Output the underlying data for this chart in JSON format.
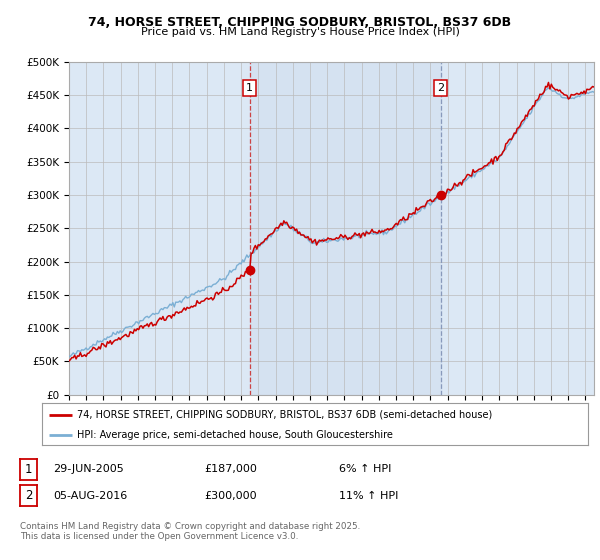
{
  "title_line1": "74, HORSE STREET, CHIPPING SODBURY, BRISTOL, BS37 6DB",
  "title_line2": "Price paid vs. HM Land Registry's House Price Index (HPI)",
  "hpi_label": "HPI: Average price, semi-detached house, South Gloucestershire",
  "property_label": "74, HORSE STREET, CHIPPING SODBURY, BRISTOL, BS37 6DB (semi-detached house)",
  "property_color": "#cc0000",
  "hpi_color": "#7bafd4",
  "background_color": "#dce8f5",
  "sale1_date": "29-JUN-2005",
  "sale1_price": 187000,
  "sale1_hpi_pct": "6% ↑ HPI",
  "sale2_date": "05-AUG-2016",
  "sale2_price": 300000,
  "sale2_hpi_pct": "11% ↑ HPI",
  "footer": "Contains HM Land Registry data © Crown copyright and database right 2025.\nThis data is licensed under the Open Government Licence v3.0.",
  "ylim": [
    0,
    500000
  ],
  "yticks": [
    0,
    50000,
    100000,
    150000,
    200000,
    250000,
    300000,
    350000,
    400000,
    450000,
    500000
  ],
  "xlim_start": 1995.0,
  "xlim_end": 2025.5,
  "sale1_x": 2005.5,
  "sale2_x": 2016.6
}
